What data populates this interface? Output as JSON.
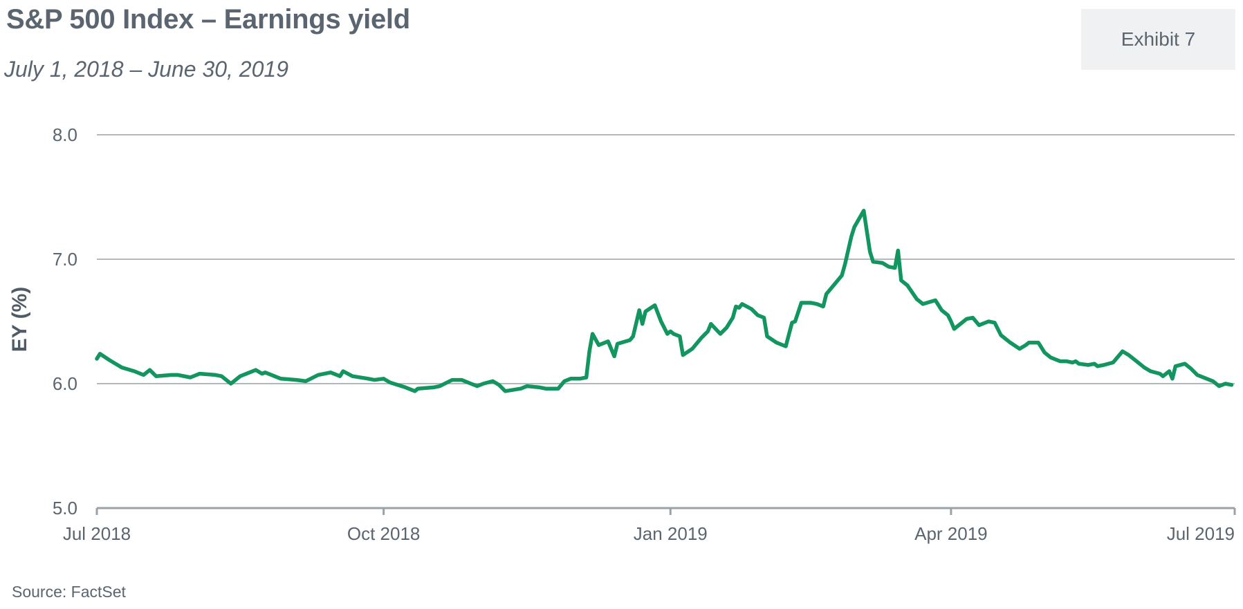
{
  "header": {
    "title": "S&P 500 Index – Earnings yield",
    "subtitle": "July 1, 2018 – June 30, 2019",
    "exhibit_label": "Exhibit 7"
  },
  "footer": {
    "source": "Source: FactSet"
  },
  "colors": {
    "line": "#12955f",
    "grid": "#9aa1a7",
    "axis": "#9aa1a7",
    "text": "#5a6570"
  },
  "chart_data": {
    "type": "line",
    "title": "S&P 500 Index – Earnings yield",
    "subtitle": "July 1, 2018 – June 30, 2019",
    "ylabel": "EY (%)",
    "xlabel": "",
    "ylim": [
      5.0,
      8.0
    ],
    "xlim": [
      "2018-07-01",
      "2019-07-01"
    ],
    "y_ticks": [
      5.0,
      6.0,
      7.0,
      8.0
    ],
    "y_tick_labels": [
      "5.0",
      "6.0",
      "7.0",
      "8.0"
    ],
    "x_ticks": [
      "2018-07-01",
      "2018-10-01",
      "2019-01-01",
      "2019-04-01",
      "2019-07-01"
    ],
    "x_tick_labels": [
      "Jul 2018",
      "Oct 2018",
      "Jan 2019",
      "Apr 2019",
      "Jul 2019"
    ],
    "grid": "horizontal",
    "legend": "none",
    "series": [
      {
        "values": [
          [
            "2018-07-01",
            6.2
          ],
          [
            "2018-07-02",
            6.24
          ],
          [
            "2018-07-05",
            6.19
          ],
          [
            "2018-07-09",
            6.13
          ],
          [
            "2018-07-13",
            6.1
          ],
          [
            "2018-07-16",
            6.07
          ],
          [
            "2018-07-18",
            6.11
          ],
          [
            "2018-07-20",
            6.06
          ],
          [
            "2018-07-25",
            6.07
          ],
          [
            "2018-07-27",
            6.07
          ],
          [
            "2018-07-31",
            6.05
          ],
          [
            "2018-08-03",
            6.08
          ],
          [
            "2018-08-08",
            6.07
          ],
          [
            "2018-08-10",
            6.06
          ],
          [
            "2018-08-13",
            6.0
          ],
          [
            "2018-08-16",
            6.06
          ],
          [
            "2018-08-21",
            6.11
          ],
          [
            "2018-08-23",
            6.08
          ],
          [
            "2018-08-24",
            6.09
          ],
          [
            "2018-08-29",
            6.04
          ],
          [
            "2018-09-03",
            6.03
          ],
          [
            "2018-09-06",
            6.02
          ],
          [
            "2018-09-10",
            6.07
          ],
          [
            "2018-09-14",
            6.09
          ],
          [
            "2018-09-17",
            6.06
          ],
          [
            "2018-09-18",
            6.1
          ],
          [
            "2018-09-21",
            6.06
          ],
          [
            "2018-09-26",
            6.04
          ],
          [
            "2018-09-28",
            6.03
          ],
          [
            "2018-10-01",
            6.04
          ],
          [
            "2018-10-03",
            6.01
          ],
          [
            "2018-10-08",
            5.97
          ],
          [
            "2018-10-11",
            5.94
          ],
          [
            "2018-10-12",
            5.96
          ],
          [
            "2018-10-17",
            5.97
          ],
          [
            "2018-10-19",
            5.98
          ],
          [
            "2018-10-23",
            6.03
          ],
          [
            "2018-10-26",
            6.03
          ],
          [
            "2018-10-29",
            6.0
          ],
          [
            "2018-10-31",
            5.98
          ],
          [
            "2018-11-02",
            6.0
          ],
          [
            "2018-11-05",
            6.02
          ],
          [
            "2018-11-07",
            5.99
          ],
          [
            "2018-11-09",
            5.94
          ],
          [
            "2018-11-14",
            5.96
          ],
          [
            "2018-11-16",
            5.98
          ],
          [
            "2018-11-20",
            5.97
          ],
          [
            "2018-11-22",
            5.96
          ],
          [
            "2018-11-26",
            5.96
          ],
          [
            "2018-11-28",
            6.02
          ],
          [
            "2018-11-30",
            6.04
          ],
          [
            "2018-12-03",
            6.04
          ],
          [
            "2018-12-05",
            6.05
          ],
          [
            "2018-12-06",
            6.26
          ],
          [
            "2018-12-07",
            6.4
          ],
          [
            "2018-12-09",
            6.31
          ],
          [
            "2018-12-12",
            6.34
          ],
          [
            "2018-12-14",
            6.22
          ],
          [
            "2018-12-15",
            6.32
          ],
          [
            "2018-12-19",
            6.35
          ],
          [
            "2018-12-20",
            6.38
          ],
          [
            "2018-12-22",
            6.59
          ],
          [
            "2018-12-23",
            6.48
          ],
          [
            "2018-12-24",
            6.58
          ],
          [
            "2018-12-27",
            6.63
          ],
          [
            "2018-12-29",
            6.5
          ],
          [
            "2018-12-31",
            6.4
          ],
          [
            "2019-01-01",
            6.42
          ],
          [
            "2019-01-02",
            6.4
          ],
          [
            "2019-01-04",
            6.38
          ],
          [
            "2019-01-05",
            6.23
          ],
          [
            "2019-01-08",
            6.28
          ],
          [
            "2019-01-11",
            6.37
          ],
          [
            "2019-01-13",
            6.42
          ],
          [
            "2019-01-14",
            6.48
          ],
          [
            "2019-01-17",
            6.4
          ],
          [
            "2019-01-19",
            6.45
          ],
          [
            "2019-01-21",
            6.53
          ],
          [
            "2019-01-22",
            6.62
          ],
          [
            "2019-01-23",
            6.61
          ],
          [
            "2019-01-24",
            6.64
          ],
          [
            "2019-01-27",
            6.6
          ],
          [
            "2019-01-29",
            6.55
          ],
          [
            "2019-01-31",
            6.53
          ],
          [
            "2019-02-01",
            6.38
          ],
          [
            "2019-02-04",
            6.33
          ],
          [
            "2019-02-07",
            6.3
          ],
          [
            "2019-02-09",
            6.49
          ],
          [
            "2019-02-10",
            6.5
          ],
          [
            "2019-02-12",
            6.65
          ],
          [
            "2019-02-15",
            6.65
          ],
          [
            "2019-02-17",
            6.64
          ],
          [
            "2019-02-19",
            6.62
          ],
          [
            "2019-02-20",
            6.72
          ],
          [
            "2019-02-23",
            6.81
          ],
          [
            "2019-02-25",
            6.87
          ],
          [
            "2019-02-26",
            6.96
          ],
          [
            "2019-02-28",
            7.18
          ],
          [
            "2019-03-01",
            7.26
          ],
          [
            "2019-03-04",
            7.39
          ],
          [
            "2019-03-06",
            7.06
          ],
          [
            "2019-03-07",
            6.98
          ],
          [
            "2019-03-10",
            6.97
          ],
          [
            "2019-03-12",
            6.94
          ],
          [
            "2019-03-14",
            6.93
          ],
          [
            "2019-03-15",
            7.07
          ],
          [
            "2019-03-16",
            6.83
          ],
          [
            "2019-03-18",
            6.79
          ],
          [
            "2019-03-21",
            6.68
          ],
          [
            "2019-03-23",
            6.64
          ],
          [
            "2019-03-27",
            6.67
          ],
          [
            "2019-03-29",
            6.59
          ],
          [
            "2019-03-31",
            6.55
          ],
          [
            "2019-04-01",
            6.5
          ],
          [
            "2019-04-02",
            6.44
          ],
          [
            "2019-04-06",
            6.52
          ],
          [
            "2019-04-08",
            6.53
          ],
          [
            "2019-04-10",
            6.47
          ],
          [
            "2019-04-13",
            6.5
          ],
          [
            "2019-04-15",
            6.49
          ],
          [
            "2019-04-17",
            6.39
          ],
          [
            "2019-04-20",
            6.33
          ],
          [
            "2019-04-23",
            6.28
          ],
          [
            "2019-04-25",
            6.31
          ],
          [
            "2019-04-26",
            6.33
          ],
          [
            "2019-04-29",
            6.33
          ],
          [
            "2019-05-01",
            6.25
          ],
          [
            "2019-05-03",
            6.21
          ],
          [
            "2019-05-06",
            6.18
          ],
          [
            "2019-05-08",
            6.18
          ],
          [
            "2019-05-10",
            6.17
          ],
          [
            "2019-05-11",
            6.18
          ],
          [
            "2019-05-12",
            6.16
          ],
          [
            "2019-05-15",
            6.15
          ],
          [
            "2019-05-17",
            6.16
          ],
          [
            "2019-05-18",
            6.14
          ],
          [
            "2019-05-20",
            6.15
          ],
          [
            "2019-05-23",
            6.17
          ],
          [
            "2019-05-26",
            6.26
          ],
          [
            "2019-05-28",
            6.23
          ],
          [
            "2019-05-31",
            6.17
          ],
          [
            "2019-06-02",
            6.13
          ],
          [
            "2019-06-04",
            6.1
          ],
          [
            "2019-06-07",
            6.08
          ],
          [
            "2019-06-08",
            6.06
          ],
          [
            "2019-06-10",
            6.1
          ],
          [
            "2019-06-11",
            6.04
          ],
          [
            "2019-06-12",
            6.14
          ],
          [
            "2019-06-15",
            6.16
          ],
          [
            "2019-06-17",
            6.12
          ],
          [
            "2019-06-19",
            6.07
          ],
          [
            "2019-06-22",
            6.04
          ],
          [
            "2019-06-24",
            6.02
          ],
          [
            "2019-06-26",
            5.98
          ],
          [
            "2019-06-28",
            6.0
          ],
          [
            "2019-06-30",
            5.99
          ]
        ]
      }
    ]
  }
}
